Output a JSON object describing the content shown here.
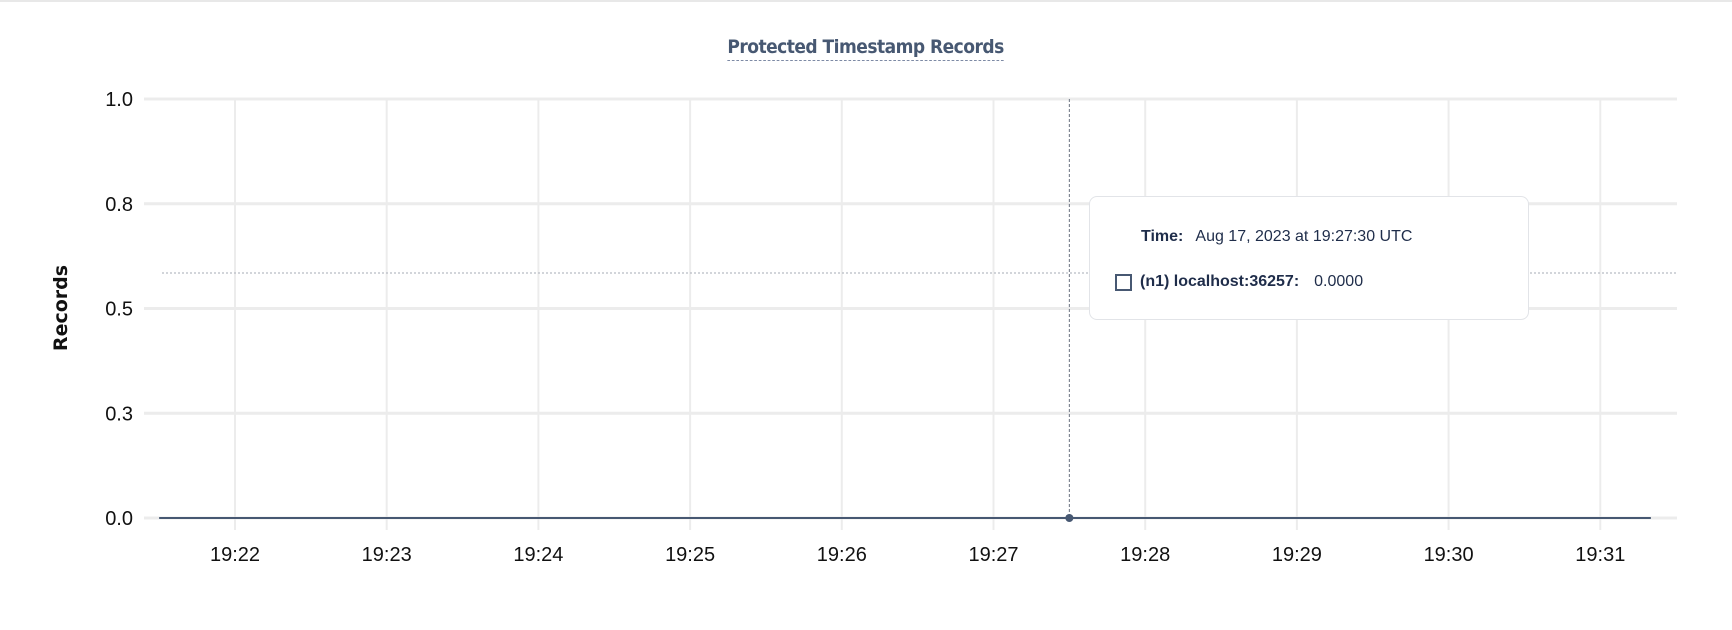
{
  "chart_data": {
    "type": "line",
    "title": "Protected Timestamp Records",
    "xlabel": "",
    "ylabel": "Records",
    "x_ticks": [
      "19:22",
      "19:23",
      "19:24",
      "19:25",
      "19:26",
      "19:27",
      "19:28",
      "19:29",
      "19:30",
      "19:31"
    ],
    "y_ticks": [
      {
        "value": 1.0,
        "label": "1.0"
      },
      {
        "value": 0.75,
        "label": "0.8"
      },
      {
        "value": 0.5,
        "label": "0.5"
      },
      {
        "value": 0.25,
        "label": "0.3"
      },
      {
        "value": 0.0,
        "label": "0.0"
      }
    ],
    "ylim": [
      0,
      1
    ],
    "xlim": [
      "19:21:30",
      "19:31:20"
    ],
    "grid": true,
    "series": [
      {
        "name": "(n1) localhost:36257",
        "color": "#475872",
        "points": [
          {
            "x": "19:21:30",
            "y": 0
          },
          {
            "x": "19:27:30",
            "y": 0
          },
          {
            "x": "19:31:20",
            "y": 0
          }
        ]
      }
    ],
    "hover": {
      "x": "19:27:30",
      "y": 0
    }
  },
  "tooltip": {
    "time_label": "Time:",
    "time_value": "Aug 17, 2023 at 19:27:30 UTC",
    "series_label": "(n1) localhost:36257:",
    "series_value": "0.0000"
  }
}
